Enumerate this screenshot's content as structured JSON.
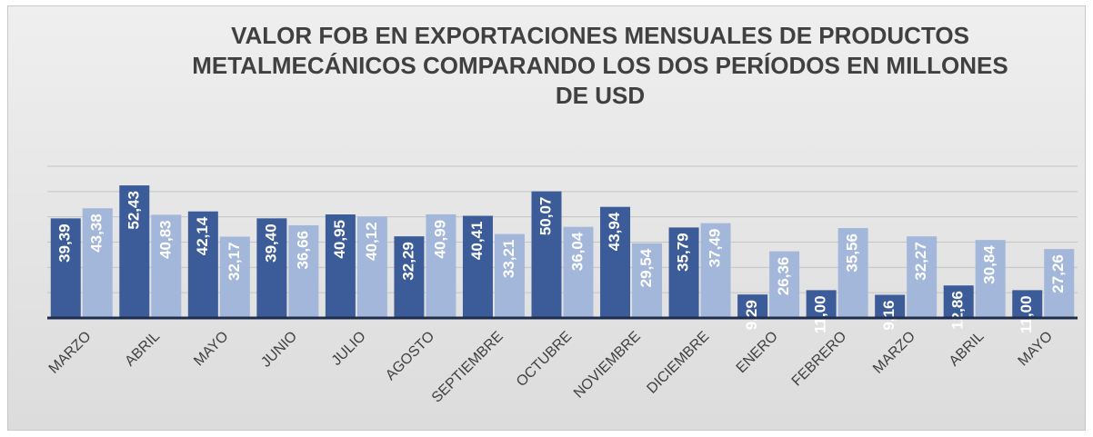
{
  "chart_data": {
    "type": "bar",
    "title": "VALOR FOB EN EXPORTACIONES MENSUALES  DE PRODUCTOS METALMECÁNICOS COMPARANDO LOS DOS PERÍODOS EN MILLONES DE USD",
    "categories": [
      "MARZO",
      "ABRIL",
      "MAYO",
      "JUNIO",
      "JULIO",
      "AGOSTO",
      "SEPTIEMBRE",
      "OCTUBRE",
      "NOVIEMBRE",
      "DICIEMBRE",
      "ENERO",
      "FEBRERO",
      "MARZO",
      "ABRIL",
      "MAYO"
    ],
    "series": [
      {
        "color": "#3b5c99",
        "values": [
          39.39,
          52.43,
          42.14,
          39.4,
          40.95,
          32.29,
          40.41,
          50.07,
          43.94,
          35.79,
          9.29,
          11.0,
          9.16,
          12.86,
          11.0
        ],
        "value_labels": [
          "39,39",
          "52,43",
          "42,14",
          "39,40",
          "40,95",
          "32,29",
          "40,41",
          "50,07",
          "43,94",
          "35,79",
          "9,29",
          "11,00",
          "9,16",
          "12,86",
          "11,00"
        ]
      },
      {
        "color": "#a3b7da",
        "values": [
          43.38,
          40.83,
          32.17,
          36.66,
          40.12,
          40.99,
          33.21,
          36.04,
          29.54,
          37.49,
          26.36,
          35.56,
          32.27,
          30.84,
          27.26
        ],
        "value_labels": [
          "43,38",
          "40,83",
          "32,17",
          "36,66",
          "40,12",
          "40,99",
          "33,21",
          "36,04",
          "29,54",
          "37,49",
          "26,36",
          "35,56",
          "32,27",
          "30,84",
          "27,26"
        ]
      }
    ],
    "ylim": [
      0,
      60
    ],
    "yticks": [
      0,
      10,
      20,
      30,
      40,
      50,
      60
    ],
    "grid": true
  }
}
